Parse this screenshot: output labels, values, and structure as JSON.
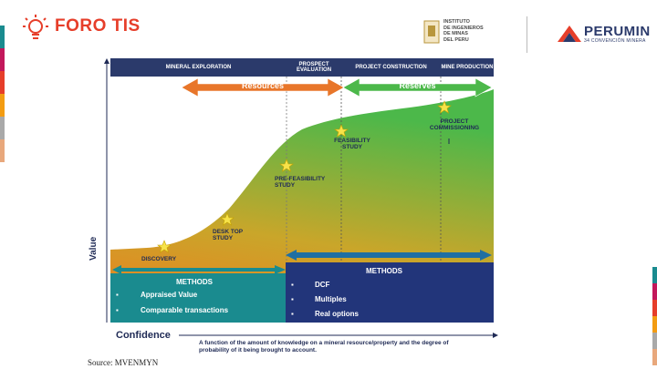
{
  "header": {
    "logo_text": "FORO TIS",
    "institute_lines": [
      "INSTITUTO",
      "DE INGENIEROS",
      "DE MINAS",
      "DEL PERU"
    ],
    "perumin_title": "PERUMIN",
    "perumin_sub": "34 CONVENCIÓN MINERA"
  },
  "phases": {
    "exploration": "MINERAL EXPLORATION",
    "prospect": "PROSPECT EVALUATION",
    "construction": "PROJECT CONSTRUCTION",
    "production": "MINE PRODUCTION"
  },
  "arrows": {
    "resources": "Resources",
    "reserves": "Reserves"
  },
  "stages": {
    "discovery": "DISCOVERY",
    "desktop": "DESK TOP STUDY",
    "prefeasibility": "PRE-FEASIBILITY STUDY",
    "feasibility": "FEASIBILITY STUDY",
    "commissioning": "PROJECT COMMISSIONING"
  },
  "methods_left": {
    "title": "METHODS",
    "items": [
      "Appraised Value",
      "Comparable transactions"
    ]
  },
  "methods_right": {
    "title": "METHODS",
    "items": [
      "DCF",
      "Multiples",
      "Real options"
    ]
  },
  "axes": {
    "value": "Value",
    "confidence": "Confidence"
  },
  "footnote": "A function of the amount of knowledge on a mineral resource/property and the degree of probability of it being brought to account.",
  "source": "Source: MVENMYN",
  "colors": {
    "navy": "#2b3a6b",
    "teal": "#1a8b8f",
    "orange": "#e8762a",
    "green": "#4cb84a",
    "brand_red": "#e63e2a"
  }
}
